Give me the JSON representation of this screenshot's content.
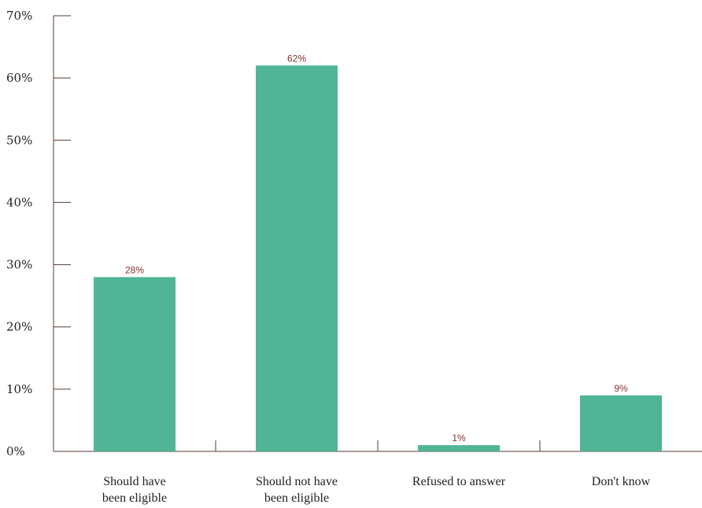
{
  "chart_data": {
    "type": "bar",
    "categories": [
      [
        "Should have",
        "been eligible"
      ],
      [
        "Should not have",
        "been eligible"
      ],
      [
        "Refused to answer"
      ],
      [
        "Don't know"
      ]
    ],
    "values": [
      28,
      62,
      1,
      9
    ],
    "value_labels": [
      "28%",
      "62%",
      "1%",
      "9%"
    ],
    "yticks": [
      "0%",
      "10%",
      "20%",
      "30%",
      "40%",
      "50%",
      "60%",
      "70%"
    ],
    "ylim": [
      0,
      70
    ],
    "grid": false,
    "legend": "none",
    "colors": {
      "bar": "#4fb596",
      "data_label": "#8b2f2f",
      "axis": "#5a3a33"
    }
  }
}
